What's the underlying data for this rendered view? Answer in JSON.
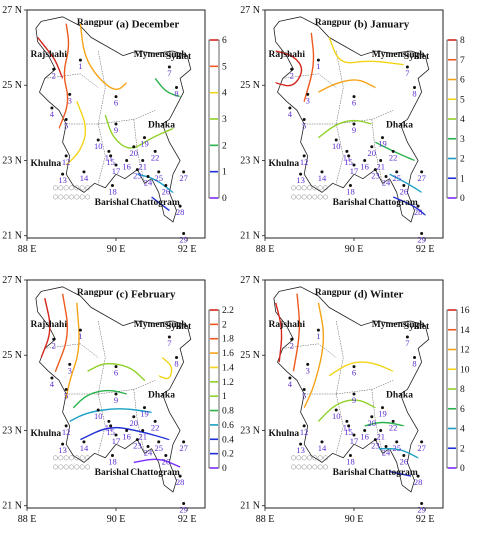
{
  "figure": {
    "panels": [
      {
        "key": "a",
        "title": "(a) December",
        "axes": {
          "y_ticks": [
            "27 N",
            "25 N",
            "23 N",
            "21 N"
          ],
          "x_ticks": [
            "88 E",
            "90 E",
            "92 E"
          ]
        },
        "colorbar": {
          "ticks": [
            "6",
            "5",
            "4",
            "3",
            "2",
            "1",
            "0"
          ]
        }
      },
      {
        "key": "b",
        "title": "(b) January",
        "axes": {
          "y_ticks": [
            "27 N",
            "25 N",
            "23 N",
            "21 N"
          ],
          "x_ticks": [
            "88 E",
            "90 E",
            "92 E"
          ]
        },
        "colorbar": {
          "ticks": [
            "8",
            "7",
            "6",
            "5",
            "4",
            "3",
            "2",
            "1",
            "0"
          ]
        }
      },
      {
        "key": "c",
        "title": "(c) February",
        "axes": {
          "y_ticks": [
            "27 N",
            "25 N",
            "23 N",
            "21 N"
          ],
          "x_ticks": [
            "88 E",
            "90 E",
            "92 E"
          ]
        },
        "colorbar": {
          "ticks": [
            "2.2",
            "2",
            "1.8",
            "1.6",
            "1.4",
            "1.2",
            "1",
            "0.8",
            "0.6",
            "0.4",
            "0.2",
            "0"
          ]
        }
      },
      {
        "key": "d",
        "title": "(d) Winter",
        "axes": {
          "y_ticks": [
            "27 N",
            "25 N",
            "23 N",
            "21 N"
          ],
          "x_ticks": [
            "88 E",
            "90 E",
            "92 E"
          ]
        },
        "colorbar": {
          "ticks": [
            "16",
            "14",
            "12",
            "10",
            "8",
            "6",
            "4",
            "2",
            "0"
          ]
        }
      }
    ],
    "cities": [
      "Rangpur",
      "Rajshahi",
      "Mymensingh",
      "Sylhet",
      "Khulna",
      "Dhaka",
      "Barishal",
      "Chattogram"
    ],
    "stations": [
      "1",
      "2",
      "3",
      "4",
      "5",
      "6",
      "7",
      "8",
      "9",
      "10",
      "11",
      "12",
      "13",
      "14",
      "15",
      "16",
      "17",
      "18",
      "19",
      "20",
      "21",
      "22",
      "23",
      "24",
      "25",
      "26",
      "27",
      "28",
      "29"
    ],
    "colors": {
      "contour_scale": [
        "#7b2cff",
        "#1f2fd6",
        "#1aa0c4",
        "#2bb24c",
        "#8fd12a",
        "#f3d418",
        "#f5a316",
        "#ee5a1e",
        "#d7261c"
      ],
      "station_label": "#5b2bd1",
      "border": "#222222"
    }
  }
}
